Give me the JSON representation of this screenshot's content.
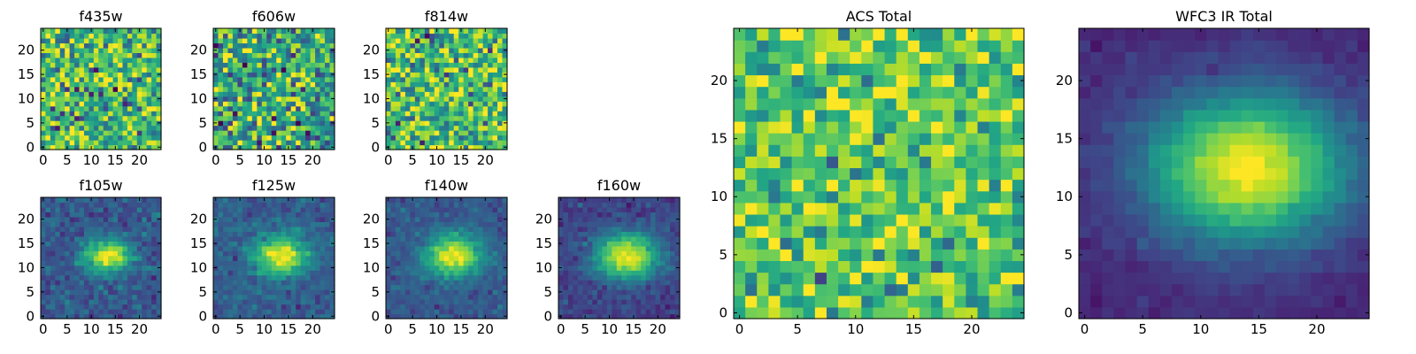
{
  "figure": {
    "background": "#ffffff"
  },
  "colormap": "viridis",
  "chart_data": [
    {
      "type": "heatmap",
      "title": "f435w",
      "xticks": [
        0,
        5,
        10,
        15,
        20
      ],
      "yticks": [
        0,
        5,
        10,
        15,
        20
      ],
      "grid_size": [
        25,
        25
      ],
      "pattern": "noise",
      "noise_mean": 0.68,
      "noise_sd": 0.22
    },
    {
      "type": "heatmap",
      "title": "f606w",
      "xticks": [
        0,
        5,
        10,
        15,
        20
      ],
      "yticks": [
        0,
        5,
        10,
        15,
        20
      ],
      "grid_size": [
        25,
        25
      ],
      "pattern": "noise",
      "noise_mean": 0.6,
      "noise_sd": 0.24
    },
    {
      "type": "heatmap",
      "title": "f814w",
      "xticks": [
        0,
        5,
        10,
        15,
        20
      ],
      "yticks": [
        0,
        5,
        10,
        15,
        20
      ],
      "grid_size": [
        25,
        25
      ],
      "pattern": "noise",
      "noise_mean": 0.7,
      "noise_sd": 0.23
    },
    {
      "type": "heatmap",
      "title": "f105w",
      "xticks": [
        0,
        5,
        10,
        15,
        20
      ],
      "yticks": [
        0,
        5,
        10,
        15,
        20
      ],
      "grid_size": [
        25,
        25
      ],
      "pattern": "source",
      "source_center": [
        13.5,
        12.5
      ],
      "source_sigma": [
        3.2,
        2.3
      ],
      "background_level": 0.28,
      "noise_sd": 0.07
    },
    {
      "type": "heatmap",
      "title": "f125w",
      "xticks": [
        0,
        5,
        10,
        15,
        20
      ],
      "yticks": [
        0,
        5,
        10,
        15,
        20
      ],
      "grid_size": [
        25,
        25
      ],
      "pattern": "source",
      "source_center": [
        13.5,
        12.5
      ],
      "source_sigma": [
        3.8,
        2.8
      ],
      "background_level": 0.3,
      "noise_sd": 0.06
    },
    {
      "type": "heatmap",
      "title": "f140w",
      "xticks": [
        0,
        5,
        10,
        15,
        20
      ],
      "yticks": [
        0,
        5,
        10,
        15,
        20
      ],
      "grid_size": [
        25,
        25
      ],
      "pattern": "source",
      "source_center": [
        13.5,
        12.5
      ],
      "source_sigma": [
        4.0,
        3.0
      ],
      "background_level": 0.28,
      "noise_sd": 0.05
    },
    {
      "type": "heatmap",
      "title": "f160w",
      "xticks": [
        0,
        5,
        10,
        15,
        20
      ],
      "yticks": [
        0,
        5,
        10,
        15,
        20
      ],
      "grid_size": [
        25,
        25
      ],
      "pattern": "source",
      "source_center": [
        13.5,
        12.5
      ],
      "source_sigma": [
        4.6,
        3.3
      ],
      "background_level": 0.2,
      "noise_sd": 0.05
    },
    {
      "type": "heatmap",
      "title": "ACS Total",
      "xticks": [
        0,
        5,
        10,
        15,
        20
      ],
      "yticks": [
        0,
        5,
        10,
        15,
        20
      ],
      "grid_size": [
        25,
        25
      ],
      "pattern": "noise",
      "noise_mean": 0.75,
      "noise_sd": 0.17
    },
    {
      "type": "heatmap",
      "title": "WFC3 IR Total",
      "xticks": [
        0,
        5,
        10,
        15,
        20
      ],
      "yticks": [
        0,
        5,
        10,
        15,
        20
      ],
      "grid_size": [
        25,
        25
      ],
      "pattern": "source",
      "source_center": [
        14.0,
        12.5
      ],
      "source_sigma": [
        6.0,
        4.4
      ],
      "background_level": 0.12,
      "noise_sd": 0.025
    }
  ]
}
